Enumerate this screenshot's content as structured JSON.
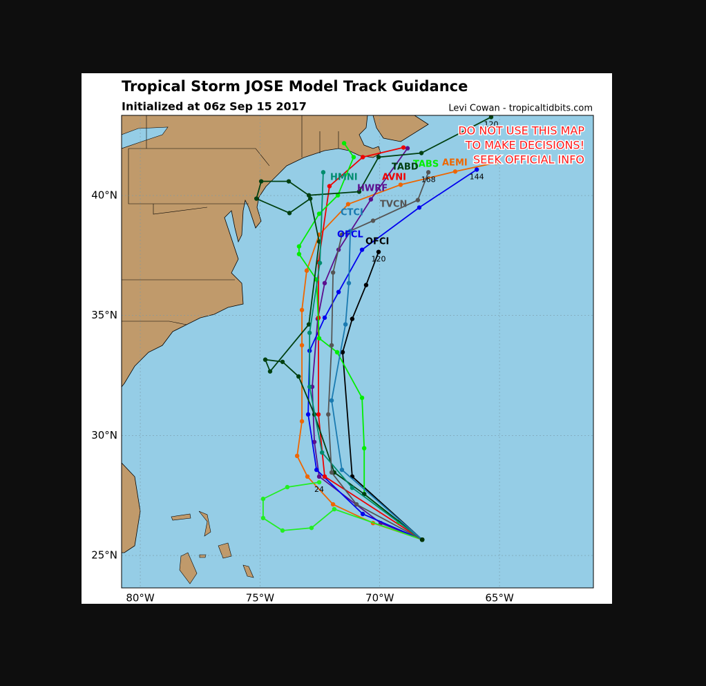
{
  "header": {
    "title": "Tropical Storm JOSE Model Track Guidance",
    "subtitle": "Initialized at 06z Sep 15 2017",
    "credit": "Levi Cowan - tropicaltidbits.com"
  },
  "warning": [
    "DO NOT USE THIS MAP",
    "TO MAKE DECISIONS!",
    "SEEK OFFICIAL INFO"
  ],
  "map": {
    "lon_range": [
      -80.78,
      -61.08
    ],
    "lat_range": [
      23.65,
      43.34
    ],
    "lon_ticks": [
      {
        "value": -80,
        "label": "80°W"
      },
      {
        "value": -75,
        "label": "75°W"
      },
      {
        "value": -70,
        "label": "70°W"
      },
      {
        "value": -65,
        "label": "65°W"
      }
    ],
    "lat_ticks": [
      {
        "value": 25,
        "label": "25°N"
      },
      {
        "value": 30,
        "label": "30°N"
      },
      {
        "value": 35,
        "label": "35°N"
      },
      {
        "value": 40,
        "label": "40°N"
      }
    ],
    "grid": true
  },
  "tracks": [
    {
      "name": "OFCI",
      "color": "#000000",
      "points": [
        [
          -68.23,
          25.66
        ],
        [
          -71.15,
          28.29
        ],
        [
          -71.55,
          33.47
        ],
        [
          -71.15,
          34.86
        ],
        [
          -70.57,
          36.27
        ],
        [
          -70.05,
          37.65
        ]
      ],
      "end_label": "120"
    },
    {
      "name": "AEMI",
      "color": "#ee6600",
      "points": [
        [
          -68.23,
          25.66
        ],
        [
          -70.28,
          26.35
        ],
        [
          -71.95,
          27.13
        ],
        [
          -73.02,
          28.29
        ],
        [
          -73.45,
          29.15
        ],
        [
          -73.25,
          30.59
        ],
        [
          -73.25,
          33.76
        ],
        [
          -73.25,
          35.23
        ],
        [
          -73.05,
          36.87
        ],
        [
          -72.53,
          38.37
        ],
        [
          -71.32,
          39.64
        ],
        [
          -69.13,
          40.45
        ],
        [
          -66.85,
          41.0
        ],
        [
          -65.15,
          41.37
        ]
      ]
    },
    {
      "name": "HWRF",
      "color": "#5b0f8e",
      "points": [
        [
          -68.23,
          25.66
        ],
        [
          -69.96,
          26.35
        ],
        [
          -72.53,
          28.29
        ],
        [
          -72.73,
          29.73
        ],
        [
          -72.82,
          32.03
        ],
        [
          -72.59,
          34.86
        ],
        [
          -72.3,
          36.35
        ],
        [
          -71.72,
          37.74
        ],
        [
          -70.37,
          39.84
        ],
        [
          -68.84,
          41.97
        ]
      ]
    },
    {
      "name": "OFCL",
      "color": "#0000ee",
      "points": [
        [
          -68.23,
          25.66
        ],
        [
          -70.71,
          26.73
        ],
        [
          -72.64,
          28.57
        ],
        [
          -72.99,
          30.88
        ],
        [
          -72.93,
          33.53
        ],
        [
          -72.3,
          34.91
        ],
        [
          -71.72,
          35.98
        ],
        [
          -70.74,
          37.74
        ],
        [
          -68.35,
          39.5
        ],
        [
          -65.95,
          41.08
        ]
      ],
      "end_label": "144"
    },
    {
      "name": "AVNI",
      "color": "#ee0000",
      "points": [
        [
          -68.23,
          25.66
        ],
        [
          -72.3,
          28.29
        ],
        [
          -72.56,
          30.88
        ],
        [
          -72.56,
          34.91
        ],
        [
          -72.56,
          37.22
        ],
        [
          -72.1,
          40.39
        ],
        [
          -70.71,
          41.6
        ],
        [
          -69.01,
          42.0
        ]
      ]
    },
    {
      "name": "TABS",
      "color": "#00ee00",
      "points": [
        [
          -68.23,
          25.66
        ],
        [
          -69.21,
          26.41
        ],
        [
          -70.65,
          27.56
        ],
        [
          -70.65,
          29.47
        ],
        [
          -70.74,
          31.57
        ],
        [
          -71.78,
          33.47
        ],
        [
          -72.53,
          34.05
        ],
        [
          -72.64,
          36.5
        ],
        [
          -73.37,
          37.56
        ],
        [
          -73.37,
          37.88
        ],
        [
          -72.53,
          39.24
        ],
        [
          -71.75,
          40.01
        ],
        [
          -71.09,
          41.6
        ],
        [
          -71.49,
          42.18
        ]
      ]
    },
    {
      "color": "#22ee22",
      "points": [
        [
          -68.23,
          25.66
        ],
        [
          -71.9,
          26.93
        ],
        [
          -72.85,
          26.15
        ],
        [
          -74.06,
          26.04
        ],
        [
          -74.87,
          26.56
        ],
        [
          -74.87,
          27.36
        ],
        [
          -73.86,
          27.85
        ],
        [
          -72.53,
          28.05
        ]
      ],
      "end_label": "24"
    },
    {
      "name": "TABD",
      "color": "#004010",
      "points": [
        [
          -68.23,
          25.66
        ],
        [
          -70.65,
          27.56
        ],
        [
          -71.9,
          28.46
        ],
        [
          -72.73,
          30.88
        ],
        [
          -73.39,
          32.46
        ],
        [
          -74.06,
          33.07
        ],
        [
          -74.78,
          33.16
        ],
        [
          -74.58,
          32.67
        ],
        [
          -72.96,
          34.63
        ],
        [
          -72.53,
          38.08
        ],
        [
          -72.9,
          39.87
        ],
        [
          -73.77,
          39.27
        ],
        [
          -75.15,
          39.87
        ],
        [
          -74.95,
          40.59
        ],
        [
          -73.8,
          40.59
        ],
        [
          -72.96,
          40.01
        ],
        [
          -70.86,
          40.16
        ],
        [
          -70.05,
          41.6
        ],
        [
          -68.26,
          41.77
        ],
        [
          -65.35,
          43.27
        ]
      ],
      "end_label": "120"
    },
    {
      "name": "HMNI",
      "color": "#008c6e",
      "points": [
        [
          -68.23,
          25.66
        ],
        [
          -71.15,
          27.82
        ],
        [
          -72.41,
          29.29
        ],
        [
          -72.93,
          32.03
        ],
        [
          -72.93,
          34.28
        ],
        [
          -72.5,
          37.19
        ],
        [
          -72.36,
          40.97
        ]
      ]
    },
    {
      "name": "TVCN",
      "color": "#555555",
      "points": [
        [
          -68.23,
          25.66
        ],
        [
          -70.97,
          27.13
        ],
        [
          -72.01,
          28.46
        ],
        [
          -72.15,
          30.88
        ],
        [
          -72.01,
          33.76
        ],
        [
          -71.95,
          36.79
        ],
        [
          -71.58,
          38.37
        ],
        [
          -70.28,
          38.95
        ],
        [
          -68.41,
          39.81
        ],
        [
          -67.97,
          40.97
        ]
      ],
      "end_label": "168"
    },
    {
      "name": "CTCI",
      "color": "#1a7ab0",
      "points": [
        [
          -68.23,
          25.66
        ],
        [
          -71.58,
          28.57
        ],
        [
          -72.01,
          31.46
        ],
        [
          -71.43,
          34.63
        ],
        [
          -71.29,
          36.35
        ],
        [
          -71.23,
          38.52
        ]
      ]
    }
  ]
}
